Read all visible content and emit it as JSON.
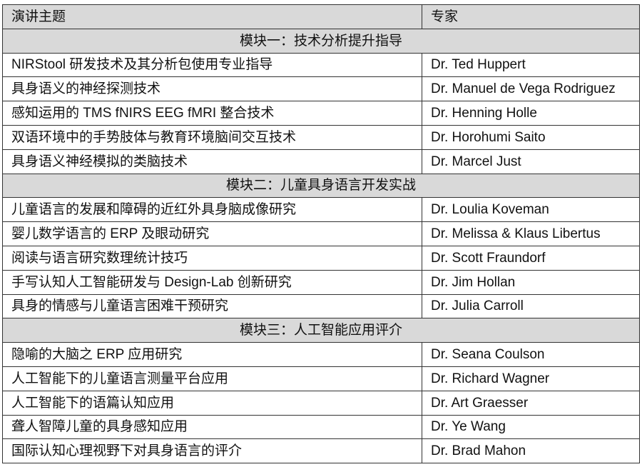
{
  "header": {
    "topic": "演讲主题",
    "expert": "专家"
  },
  "sections": [
    {
      "title": "模块一：技术分析提升指导",
      "rows": [
        {
          "topic": "NIRStool 研发技术及其分析包使用专业指导",
          "expert": "Dr. Ted Huppert"
        },
        {
          "topic": "具身语义的神经探测技术",
          "expert": "Dr. Manuel de Vega Rodriguez"
        },
        {
          "topic": "感知运用的 TMS fNIRS EEG fMRI 整合技术",
          "expert": "Dr. Henning Holle"
        },
        {
          "topic": "双语环境中的手势肢体与教育环境脑间交互技术",
          "expert": "Dr. Horohumi Saito"
        },
        {
          "topic": "具身语义神经模拟的类脑技术",
          "expert": "Dr. Marcel Just"
        }
      ]
    },
    {
      "title": "模块二：儿童具身语言开发实战",
      "rows": [
        {
          "topic": "儿童语言的发展和障碍的近红外具身脑成像研究",
          "expert": "Dr. Loulia Koveman"
        },
        {
          "topic": "婴儿数学语言的 ERP 及眼动研究",
          "expert": "Dr. Melissa & Klaus Libertus"
        },
        {
          "topic": "阅读与语言研究数理统计技巧",
          "expert": "Dr. Scott Fraundorf"
        },
        {
          "topic": "手写认知人工智能研发与 Design-Lab 创新研究",
          "expert": "Dr. Jim Hollan"
        },
        {
          "topic": "具身的情感与儿童语言困难干预研究",
          "expert": "Dr. Julia Carroll"
        }
      ]
    },
    {
      "title": "模块三：人工智能应用评介",
      "rows": [
        {
          "topic": "隐喻的大脑之 ERP 应用研究",
          "expert": "Dr. Seana Coulson"
        },
        {
          "topic": "人工智能下的儿童语言测量平台应用",
          "expert": "Dr. Richard Wagner"
        },
        {
          "topic": "人工智能下的语篇认知应用",
          "expert": "Dr. Art Graesser"
        },
        {
          "topic": "聋人智障儿童的具身感知应用",
          "expert": "Dr. Ye Wang"
        },
        {
          "topic": "国际认知心理视野下对具身语言的评介",
          "expert": "Dr. Brad Mahon"
        }
      ]
    }
  ]
}
